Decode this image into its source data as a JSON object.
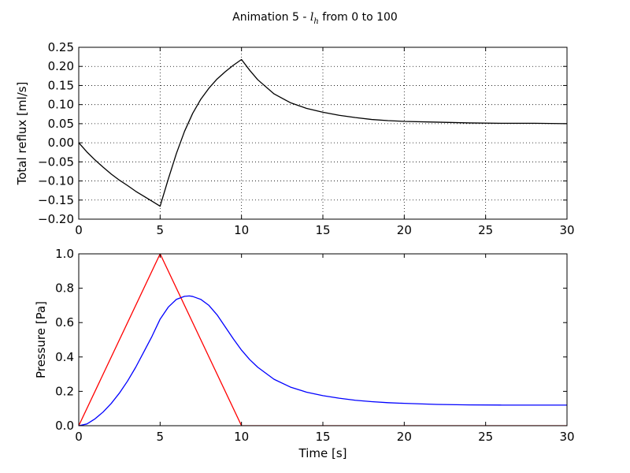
{
  "figure": {
    "title": "Animation 5 - l_h from 0 to 100",
    "title_prefix": "Animation 5 - ",
    "title_math_base": "l",
    "title_math_sub": "h",
    "title_suffix": " from 0 to 100"
  },
  "chart_data": [
    {
      "type": "line",
      "title": "",
      "xlabel": "",
      "ylabel": "Total reflux [ml/s]",
      "xlim": [
        0,
        30
      ],
      "ylim": [
        -0.2,
        0.25
      ],
      "xticks": [
        "0",
        "5",
        "10",
        "15",
        "20",
        "25",
        "30"
      ],
      "yticks": [
        "0.25",
        "0.20",
        "0.15",
        "0.10",
        "0.05",
        "0.00",
        "−0.05",
        "−0.10",
        "−0.15",
        "−0.20"
      ],
      "grid": true,
      "series": [
        {
          "color": "#000000",
          "x": [
            0,
            0.5,
            1,
            1.5,
            2,
            2.5,
            3,
            3.5,
            4,
            4.5,
            5,
            5.5,
            6,
            6.5,
            7,
            7.5,
            8,
            8.5,
            9,
            9.5,
            10,
            10.5,
            11,
            12,
            13,
            14,
            15,
            16,
            17,
            18,
            19,
            20,
            22,
            24,
            26,
            28,
            30
          ],
          "y": [
            0.0,
            -0.024,
            -0.045,
            -0.064,
            -0.082,
            -0.098,
            -0.112,
            -0.127,
            -0.14,
            -0.153,
            -0.166,
            -0.095,
            -0.028,
            0.03,
            0.077,
            0.114,
            0.143,
            0.167,
            0.186,
            0.203,
            0.218,
            0.19,
            0.165,
            0.128,
            0.105,
            0.09,
            0.08,
            0.072,
            0.066,
            0.061,
            0.058,
            0.056,
            0.054,
            0.052,
            0.051,
            0.051,
            0.05
          ]
        }
      ]
    },
    {
      "type": "line",
      "title": "",
      "xlabel": "Time [s]",
      "ylabel": "Pressure [Pa]",
      "xlim": [
        0,
        30
      ],
      "ylim": [
        0,
        1.0
      ],
      "xticks": [
        "0",
        "5",
        "10",
        "15",
        "20",
        "25",
        "30"
      ],
      "yticks": [
        "1.0",
        "0.8",
        "0.6",
        "0.4",
        "0.2",
        "0.0"
      ],
      "grid": false,
      "series": [
        {
          "color": "#ff0000",
          "x": [
            0,
            5,
            10,
            30
          ],
          "y": [
            0,
            1.0,
            0,
            0
          ]
        },
        {
          "color": "#0000ff",
          "x": [
            0,
            0.5,
            1,
            1.5,
            2,
            2.5,
            3,
            3.5,
            4,
            4.5,
            5,
            5.5,
            6,
            6.5,
            6.8,
            7,
            7.5,
            8,
            8.5,
            9,
            9.5,
            10,
            10.5,
            11,
            12,
            13,
            14,
            15,
            16,
            17,
            18,
            19,
            20,
            22,
            24,
            26,
            28,
            30
          ],
          "y": [
            0,
            0.01,
            0.04,
            0.08,
            0.13,
            0.19,
            0.26,
            0.34,
            0.43,
            0.52,
            0.62,
            0.69,
            0.735,
            0.753,
            0.755,
            0.752,
            0.735,
            0.7,
            0.645,
            0.575,
            0.505,
            0.44,
            0.385,
            0.34,
            0.27,
            0.225,
            0.195,
            0.175,
            0.16,
            0.148,
            0.14,
            0.134,
            0.13,
            0.124,
            0.121,
            0.12,
            0.12,
            0.12
          ]
        }
      ]
    }
  ]
}
